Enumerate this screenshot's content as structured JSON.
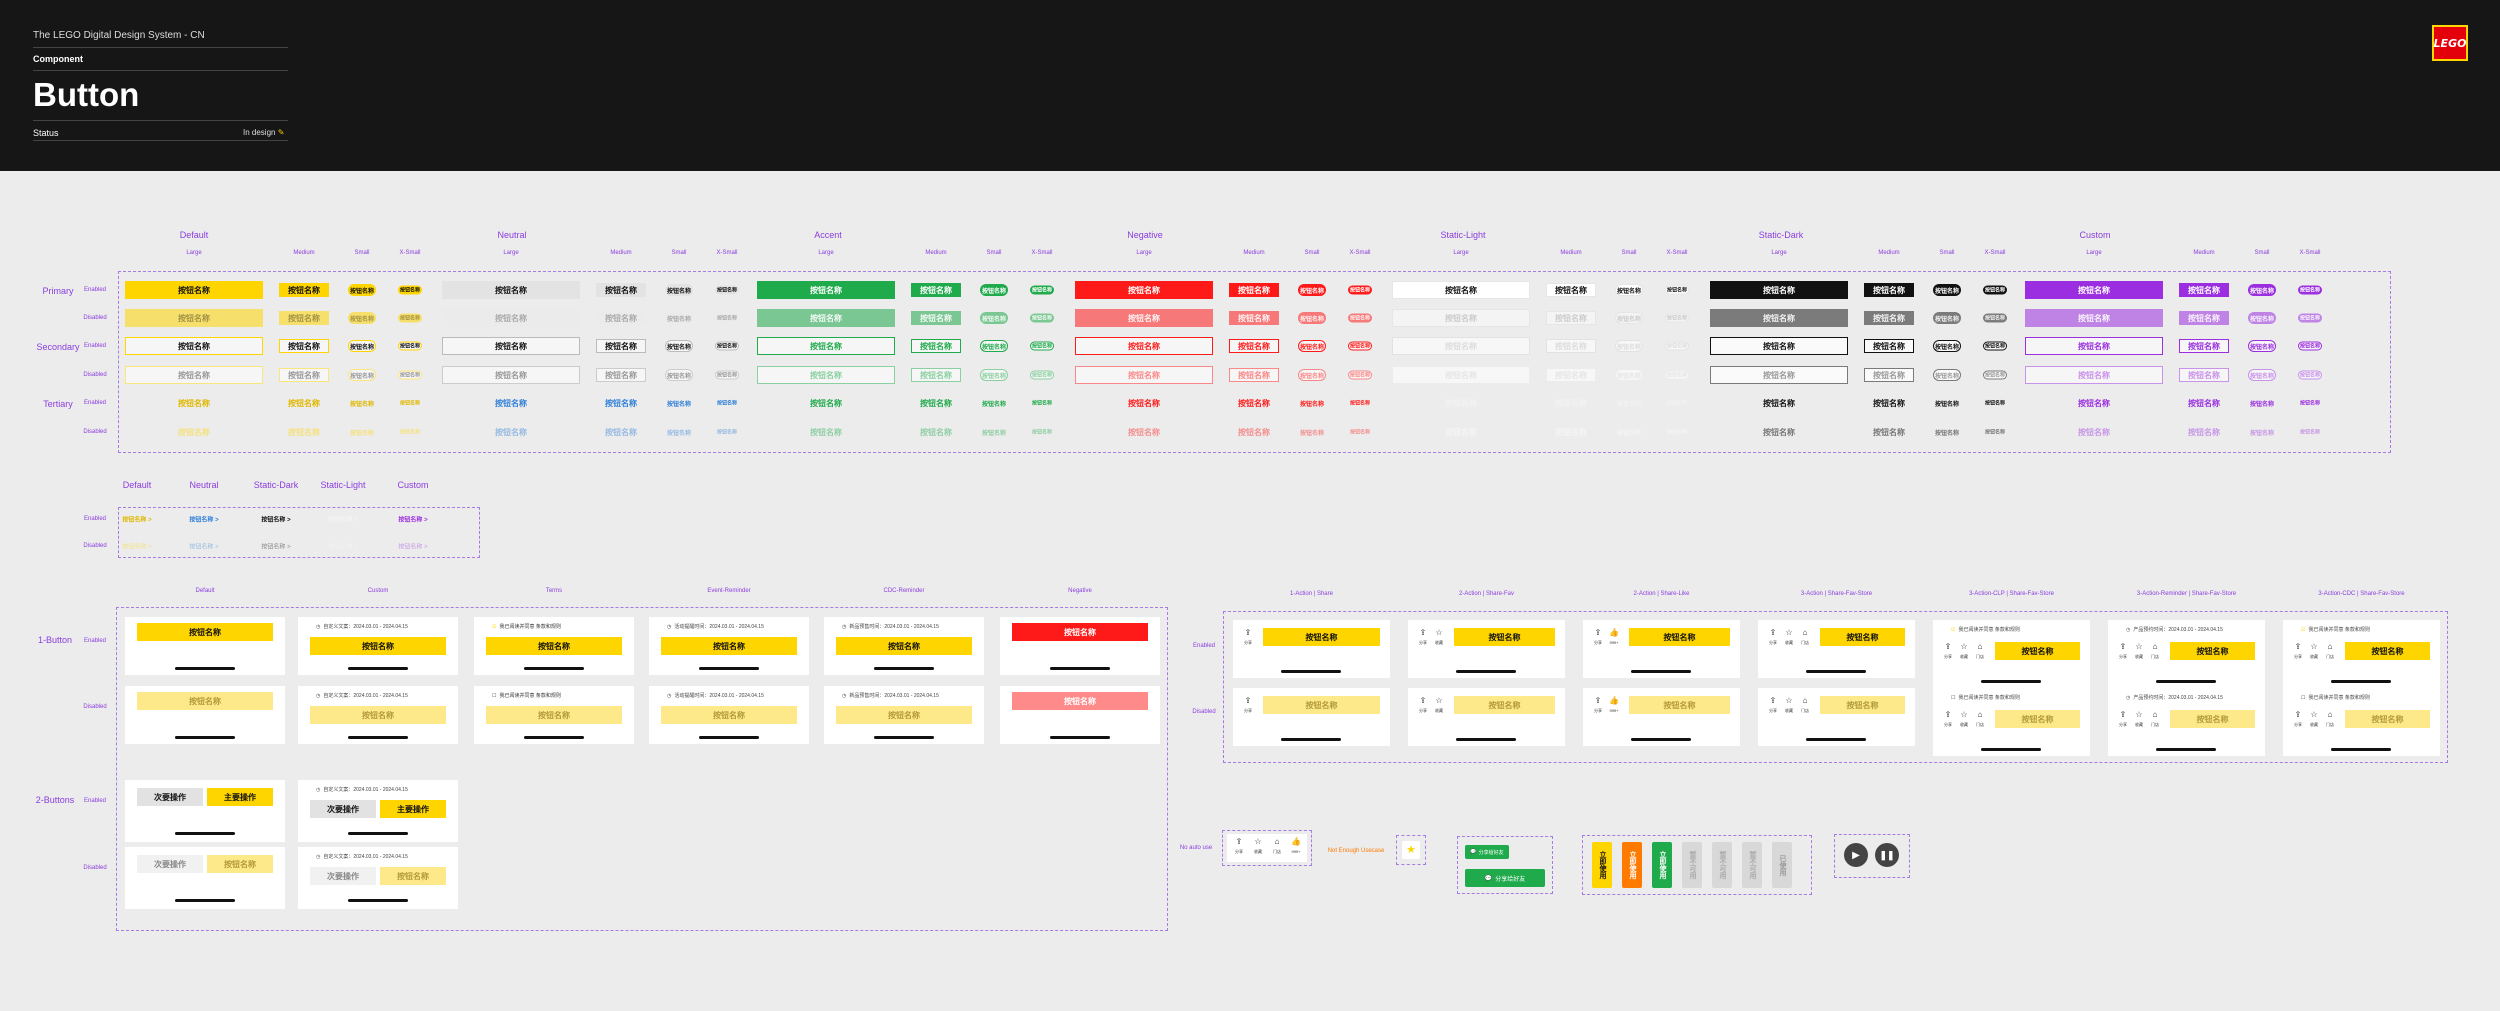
{
  "header": {
    "system": "The LEGO Digital Design System - CN",
    "component": "Component",
    "title": "Button",
    "status_label": "Status",
    "status_value": "In design",
    "status_icon": "pencil-icon",
    "logo": "LEGO"
  },
  "button_label": "按钮名称",
  "grid": {
    "groups": [
      "Default",
      "Neutral",
      "Accent",
      "Negative",
      "Static-Light",
      "Static-Dark",
      "Custom"
    ],
    "sizes": [
      "Large",
      "Medium",
      "Small",
      "X-Small"
    ],
    "row_groups": [
      "Primary",
      "Secondary",
      "Tertiary"
    ],
    "states": [
      "Enabled",
      "Disabled"
    ],
    "colors": {
      "Default": "#ffd500",
      "Neutral": "#e3e3e3",
      "Accent": "#1faa4b",
      "Negative": "#ff1a1a",
      "Static-Light": "#ffffff",
      "Static-Dark": "#111111",
      "Custom": "#9b2ee0"
    }
  },
  "text_links": {
    "columns": [
      "Default",
      "Neutral",
      "Static-Dark",
      "Static-Light",
      "Custom"
    ],
    "states": [
      "Enabled",
      "Disabled"
    ],
    "label": "按钮名称 >"
  },
  "cards": {
    "columns": [
      "Default",
      "Custom",
      "Terms",
      "Event-Reminder",
      "CDC-Reminder",
      "Negative"
    ],
    "rows": [
      "1-Button",
      "2-Buttons"
    ],
    "states": [
      "Enabled",
      "Disabled"
    ],
    "custom_text": "自定义文案：2024.03.01 - 2024.04.15",
    "terms_text": "我已阅读并同意 条款和规则",
    "event_text": "活动提醒时间：2024.03.01 - 2024.04.15",
    "cdc_text": "新品预售时间：2024.03.01 - 2024.04.15",
    "secondary_label": "次要操作",
    "primary_label": "主要操作"
  },
  "action_cards": {
    "columns": [
      "1-Action | Share",
      "2-Action | Share-Fav",
      "2-Action | Share-Like",
      "3-Action | Share-Fav-Store",
      "3-Action-CLP | Share-Fav-Store",
      "3-Action-Reminder | Share-Fav-Store",
      "3-Action-CDC | Share-Fav-Store"
    ],
    "states": [
      "Enabled",
      "Disabled"
    ],
    "icon_labels": {
      "share": "分享",
      "fav": "收藏",
      "like": "999+",
      "store": "门店"
    },
    "reminder_text": "产品预约时间：2024.03.01 - 2024.04.15"
  },
  "misc": {
    "no_auto_use": "No auto use",
    "not_enough_usecase": "Not Enough Usecase",
    "wechat_1": "分享给好友",
    "wechat_2": "分享给好友",
    "ticket_labels": [
      "立即使用",
      "立即使用",
      "立即使用",
      "暂不可用",
      "暂不可用",
      "暂不可用",
      "已使用"
    ]
  }
}
